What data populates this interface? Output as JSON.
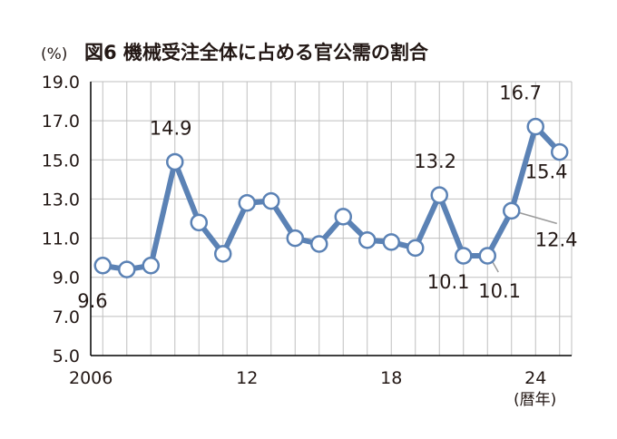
{
  "chart_data": {
    "type": "line",
    "title": "図6 機械受注全体に占める官公需の割合",
    "y_unit": "(%)",
    "x_unit": "(暦年)",
    "x": [
      2006,
      2007,
      2008,
      2009,
      2010,
      2011,
      2012,
      2013,
      2014,
      2015,
      2016,
      2017,
      2018,
      2019,
      2020,
      2021,
      2022,
      2023,
      2024,
      2025
    ],
    "x_tick_values": [
      2006,
      2012,
      2018,
      2024
    ],
    "x_tick_labels": [
      "2006",
      "12",
      "18",
      "24"
    ],
    "y_ticks": [
      "19.0",
      "17.0",
      "15.0",
      "13.0",
      "11.0",
      "9.0",
      "7.0",
      "5.0"
    ],
    "ylim": [
      5.0,
      19.0
    ],
    "grid": true,
    "series": [
      {
        "values": [
          9.6,
          9.4,
          9.6,
          14.9,
          11.8,
          10.2,
          12.8,
          12.9,
          11.0,
          10.7,
          12.1,
          10.9,
          10.8,
          10.5,
          13.2,
          10.1,
          10.1,
          12.4,
          16.7,
          15.4
        ]
      }
    ],
    "data_labels": [
      {
        "index": 0,
        "text": "9.6"
      },
      {
        "index": 3,
        "text": "14.9"
      },
      {
        "index": 14,
        "text": "13.2"
      },
      {
        "index": 15,
        "text": "10.1"
      },
      {
        "index": 16,
        "text": "10.1"
      },
      {
        "index": 17,
        "text": "12.4"
      },
      {
        "index": 18,
        "text": "16.7"
      },
      {
        "index": 19,
        "text": "15.4"
      }
    ],
    "colors": {
      "line": "#5b82b5",
      "marker_fill": "#ffffff",
      "marker_stroke": "#5b82b5",
      "grid": "#bfbfbf",
      "text": "#231815",
      "leader": "#9a9a9a"
    }
  }
}
